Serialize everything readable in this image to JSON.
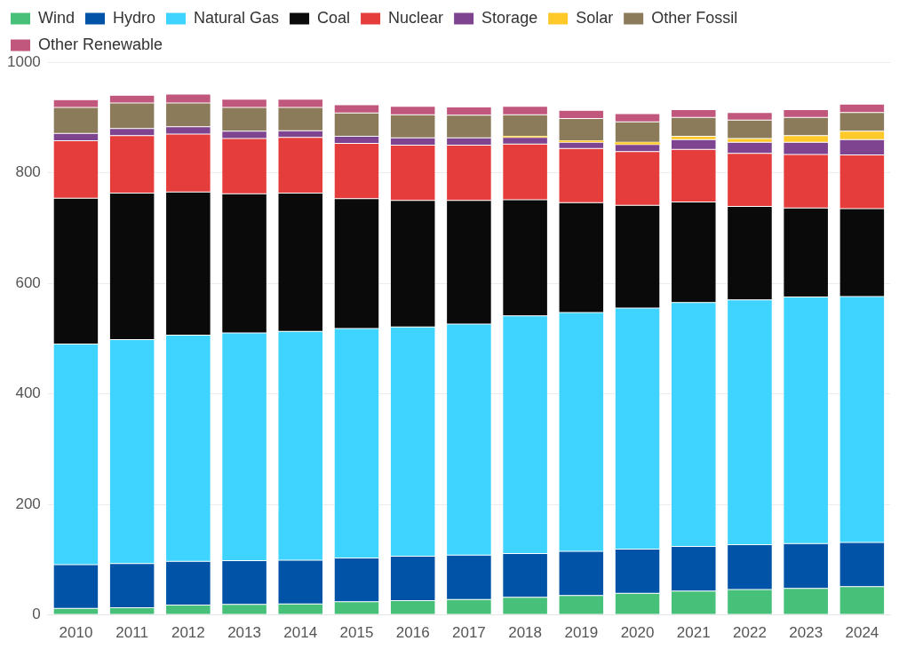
{
  "chart_data": {
    "type": "bar",
    "stacked": true,
    "categories": [
      "2010",
      "2011",
      "2012",
      "2013",
      "2014",
      "2015",
      "2016",
      "2017",
      "2018",
      "2019",
      "2020",
      "2021",
      "2022",
      "2023",
      "2024"
    ],
    "series": [
      {
        "name": "Wind",
        "color": "#47c07a",
        "values": [
          12,
          13,
          18,
          19,
          20,
          24,
          26,
          28,
          32,
          35,
          39,
          43,
          46,
          48,
          51
        ]
      },
      {
        "name": "Hydro",
        "color": "#0053a6",
        "values": [
          79,
          80,
          79,
          79,
          79,
          79,
          80,
          80,
          79,
          80,
          80,
          81,
          81,
          81,
          80
        ]
      },
      {
        "name": "Natural Gas",
        "color": "#3fd4ff",
        "values": [
          399,
          405,
          409,
          412,
          414,
          415,
          415,
          418,
          430,
          432,
          436,
          441,
          443,
          446,
          445
        ]
      },
      {
        "name": "Coal",
        "color": "#0a0a0a",
        "values": [
          264,
          265,
          259,
          252,
          250,
          235,
          229,
          224,
          210,
          199,
          186,
          182,
          169,
          161,
          159
        ]
      },
      {
        "name": "Nuclear",
        "color": "#e43d3b",
        "values": [
          104,
          104,
          105,
          100,
          101,
          100,
          100,
          100,
          101,
          98,
          97,
          95,
          96,
          97,
          97
        ]
      },
      {
        "name": "Storage",
        "color": "#7e4490",
        "values": [
          13,
          13,
          13,
          13,
          12,
          13,
          13,
          13,
          12,
          11,
          13,
          18,
          20,
          22,
          28
        ]
      },
      {
        "name": "Solar",
        "color": "#ffc92a",
        "values": [
          0,
          0,
          0,
          0,
          0,
          0,
          0,
          0,
          2,
          3,
          4,
          6,
          7,
          12,
          15
        ]
      },
      {
        "name": "Other Fossil",
        "color": "#8b7b5a",
        "values": [
          47,
          46,
          43,
          43,
          42,
          42,
          42,
          41,
          39,
          40,
          37,
          34,
          33,
          33,
          34
        ]
      },
      {
        "name": "Other Renewable",
        "color": "#c1577d",
        "values": [
          14,
          14,
          16,
          15,
          15,
          15,
          15,
          15,
          15,
          15,
          15,
          14,
          14,
          14,
          15
        ]
      }
    ],
    "ylim": [
      0,
      1000
    ],
    "yticks": [
      0,
      200,
      400,
      600,
      800,
      1000
    ],
    "grid": "y",
    "legend": "top left"
  }
}
